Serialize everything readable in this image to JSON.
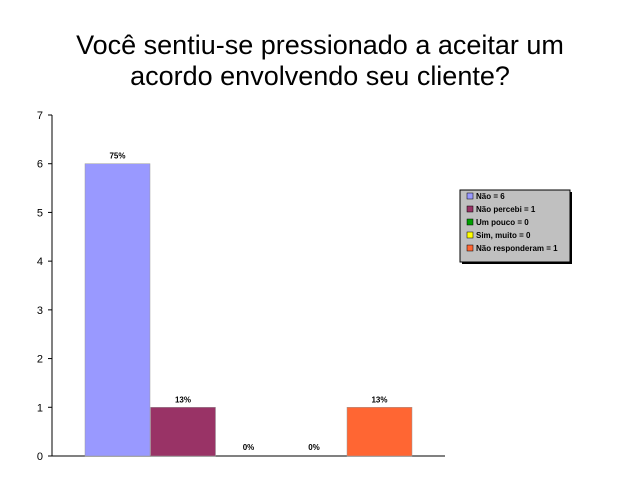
{
  "chart_data": {
    "type": "bar",
    "title_lines": [
      "Você sentiu-se pressionado a aceitar um",
      "acordo envolvendo seu cliente?"
    ],
    "categories": [
      "Não",
      "Não percebi",
      "Um pouco",
      "Sim, muito",
      "Não responderam"
    ],
    "values": [
      6,
      1,
      0,
      0,
      1
    ],
    "data_labels": [
      "75%",
      "13%",
      "0%",
      "0%",
      "13%"
    ],
    "legend": [
      "Não = 6",
      "Não percebi = 1",
      "Um pouco = 0",
      "Sim, muito = 0",
      "Não responderam = 1"
    ],
    "colors": [
      "#9999ff",
      "#993366",
      "#00a000",
      "#ffff00",
      "#ff6633"
    ],
    "ylim": [
      0,
      7
    ],
    "yticks": [
      0,
      1,
      2,
      3,
      4,
      5,
      6,
      7
    ],
    "xlabel": "",
    "ylabel": "",
    "grid": false,
    "legend_position": "right"
  }
}
